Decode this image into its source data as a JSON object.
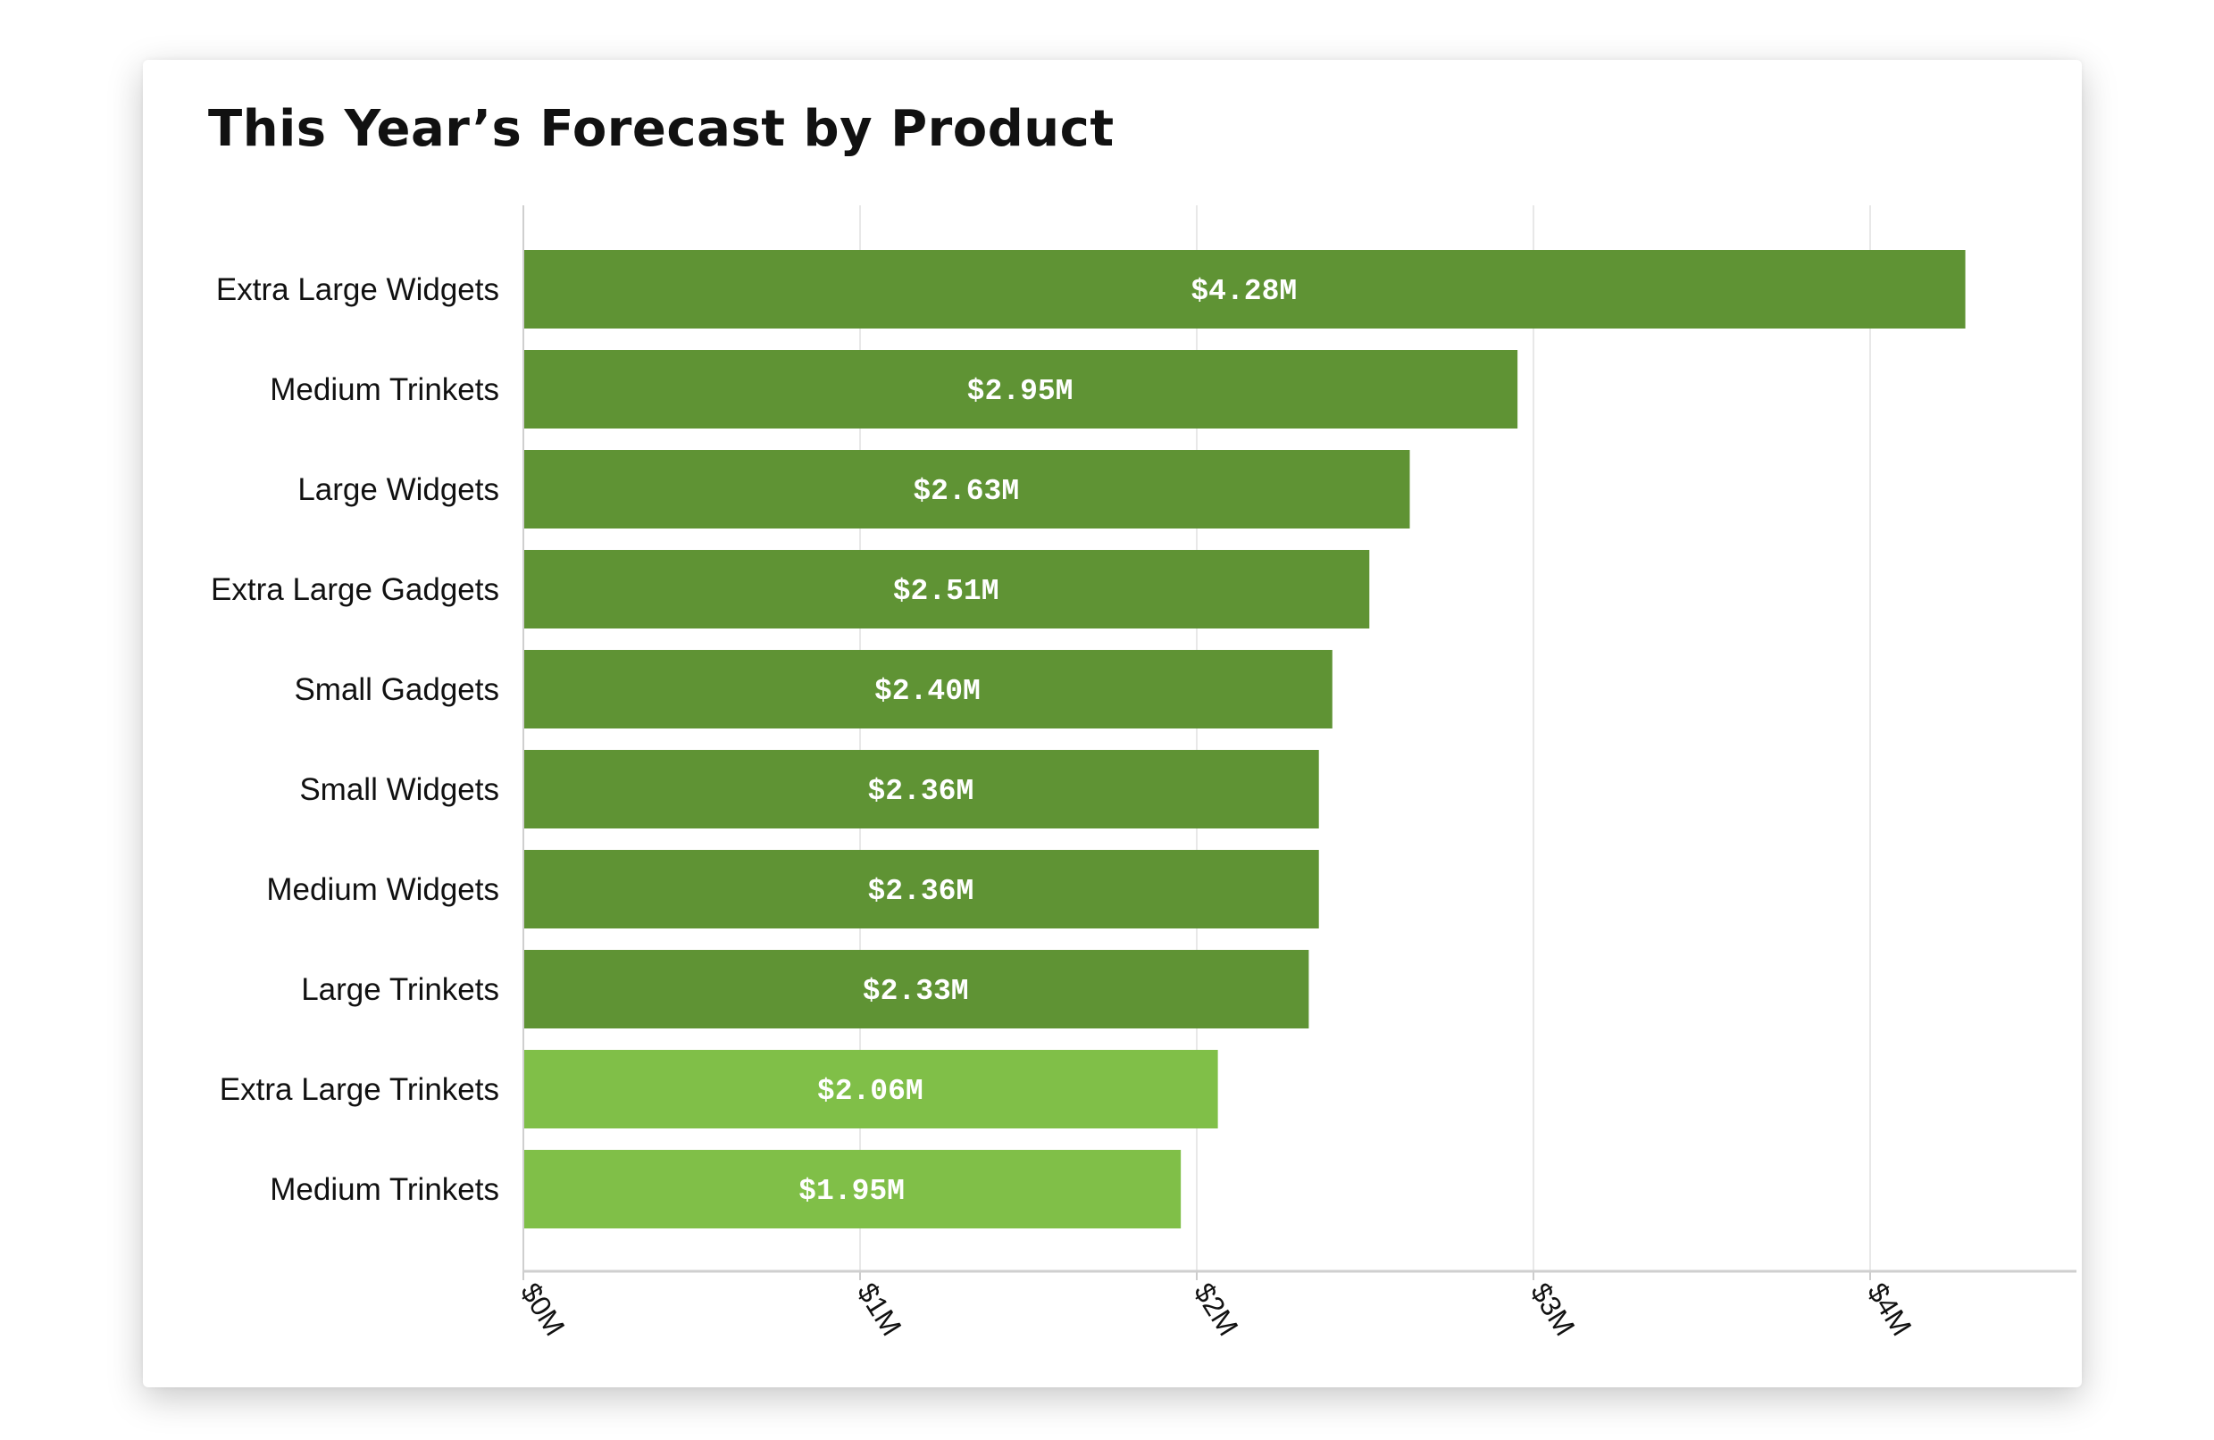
{
  "chart_data": {
    "type": "bar",
    "orientation": "horizontal",
    "title": "This Year’s Forecast by Product",
    "xlabel": "",
    "ylabel": "",
    "categories": [
      "Extra Large Widgets",
      "Medium Trinkets",
      "Large Widgets",
      "Extra Large Gadgets",
      "Small Gadgets",
      "Small Widgets",
      "Medium Widgets",
      "Large Trinkets",
      "Extra Large Trinkets",
      "Medium Trinkets"
    ],
    "values": [
      4.28,
      2.95,
      2.63,
      2.51,
      2.4,
      2.36,
      2.36,
      2.33,
      2.06,
      1.95
    ],
    "data_labels": [
      "$4.28M",
      "$2.95M",
      "$2.63M",
      "$2.51M",
      "$2.40M",
      "$2.36M",
      "$2.36M",
      "$2.33M",
      "$2.06M",
      "$1.95M"
    ],
    "bar_colors": [
      "#5f9334",
      "#5f9334",
      "#5f9334",
      "#5f9334",
      "#5f9334",
      "#5f9334",
      "#5f9334",
      "#5f9334",
      "#80bf48",
      "#80bf48"
    ],
    "xlim": [
      0,
      4.6
    ],
    "xticks": [
      0,
      1,
      2,
      3,
      4
    ],
    "xtick_labels": [
      "$0M",
      "$1M",
      "$2M",
      "$3M",
      "$4M"
    ],
    "grid": true,
    "legend": "none"
  }
}
